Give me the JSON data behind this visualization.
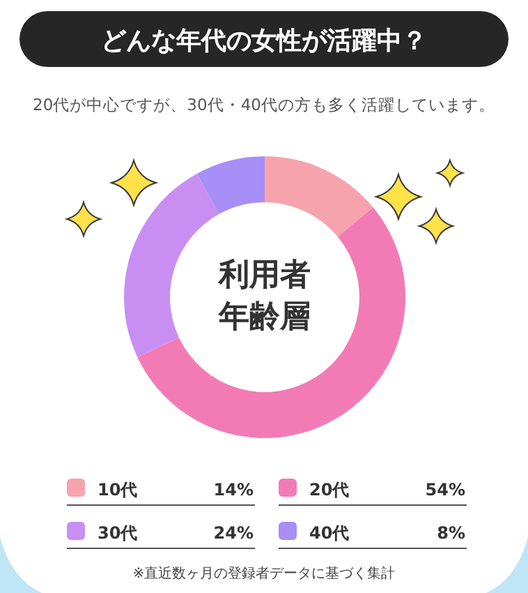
{
  "chart_data": {
    "type": "donut",
    "title": "どんな年代の女性が活躍中？",
    "subtitle": "20代が中心ですが、30代・40代の方も多く活躍しています。",
    "categories": [
      "10代",
      "20代",
      "30代",
      "40代"
    ],
    "values": [
      14,
      54,
      24,
      8
    ],
    "colors": [
      "#f7a3ad",
      "#f27bb6",
      "#c98ef2",
      "#a88ef7"
    ],
    "value_labels": [
      "14%",
      "54%",
      "24%",
      "8%"
    ],
    "legend": "bottom",
    "annotations": [
      "利用者",
      "年齢層",
      "※直近数ヶ月の登録者データに基づく集計"
    ]
  }
}
